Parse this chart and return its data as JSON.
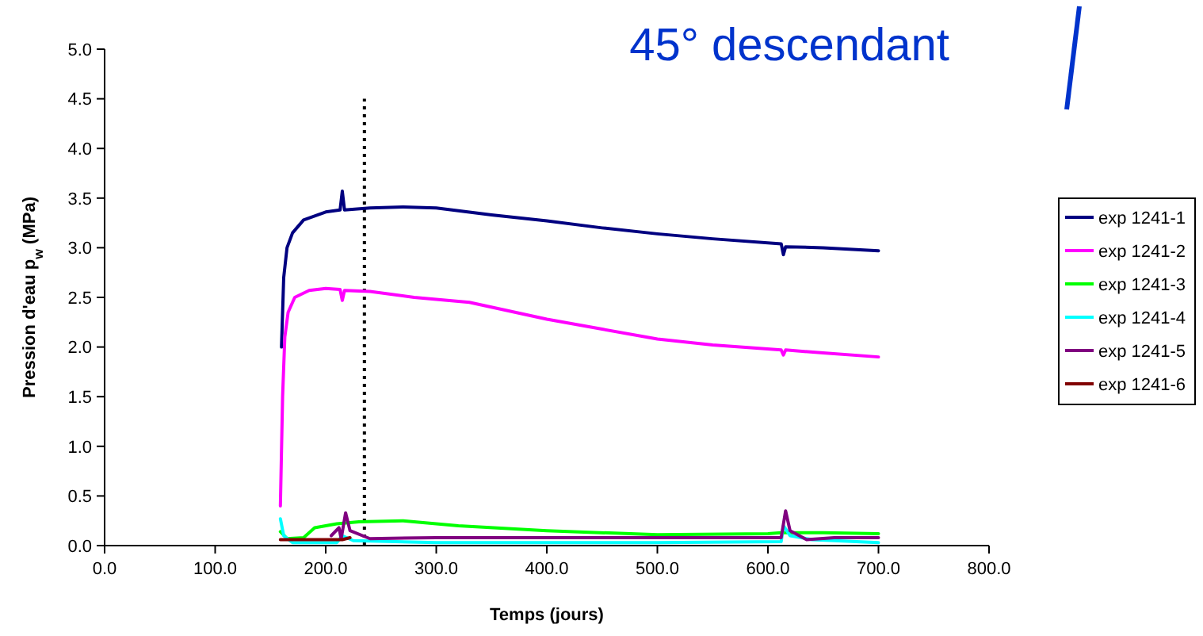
{
  "chart_data": {
    "type": "line",
    "title": "45° descendant",
    "xlabel": "Temps (jours)",
    "ylabel": "Pression d'eau p$_{w}$   (MPa)",
    "xlim": [
      0,
      800
    ],
    "xticks": [
      {
        "value": 0,
        "label": "0.0"
      },
      {
        "value": 100,
        "label": "100.0"
      },
      {
        "value": 200,
        "label": "200.0"
      },
      {
        "value": 300,
        "label": "300.0"
      },
      {
        "value": 400,
        "label": "400.0"
      },
      {
        "value": 500,
        "label": "500.0"
      },
      {
        "value": 600,
        "label": "600.0"
      },
      {
        "value": 700,
        "label": "700.0"
      },
      {
        "value": 800,
        "label": "800.0"
      }
    ],
    "ylim": [
      0,
      5
    ],
    "yticks": [
      {
        "value": 0,
        "label": "0.0"
      },
      {
        "value": 0.5,
        "label": "0.5"
      },
      {
        "value": 1,
        "label": "1.0"
      },
      {
        "value": 1.5,
        "label": "1.5"
      },
      {
        "value": 2,
        "label": "2.0"
      },
      {
        "value": 2.5,
        "label": "2.5"
      },
      {
        "value": 3,
        "label": "3.0"
      },
      {
        "value": 3.5,
        "label": "3.5"
      },
      {
        "value": 4,
        "label": "4.0"
      },
      {
        "value": 4.5,
        "label": "4.5"
      },
      {
        "value": 5,
        "label": "5.0"
      }
    ],
    "grid": false,
    "legend": "right",
    "line_style": "solid",
    "ref_lines": [
      {
        "axis": "x",
        "value": 235,
        "color": "#000000",
        "line_style": "dotted"
      }
    ],
    "series": [
      {
        "name": "exp 1241-1",
        "color": "#000080",
        "x": [
          160,
          162,
          165,
          170,
          180,
          200,
          213,
          215,
          217,
          240,
          270,
          300,
          350,
          400,
          450,
          500,
          550,
          612,
          614,
          616,
          650,
          700
        ],
        "values": [
          2.0,
          2.7,
          3.0,
          3.15,
          3.28,
          3.36,
          3.38,
          3.57,
          3.38,
          3.4,
          3.41,
          3.4,
          3.33,
          3.27,
          3.2,
          3.14,
          3.09,
          3.04,
          2.93,
          3.01,
          3.0,
          2.97
        ]
      },
      {
        "name": "exp 1241-2",
        "color": "#ff00ff",
        "x": [
          159,
          161,
          163,
          166,
          172,
          185,
          200,
          213,
          215,
          217,
          240,
          280,
          330,
          400,
          450,
          500,
          550,
          612,
          614,
          616,
          650,
          700
        ],
        "values": [
          0.4,
          1.5,
          2.1,
          2.35,
          2.5,
          2.57,
          2.59,
          2.58,
          2.47,
          2.57,
          2.56,
          2.5,
          2.45,
          2.28,
          2.18,
          2.08,
          2.02,
          1.97,
          1.92,
          1.97,
          1.94,
          1.9
        ]
      },
      {
        "name": "exp 1241-3",
        "color": "#00ff00",
        "x": [
          159,
          165,
          180,
          190,
          210,
          230,
          270,
          320,
          400,
          500,
          600,
          612,
          650,
          700
        ],
        "values": [
          0.14,
          0.07,
          0.08,
          0.18,
          0.22,
          0.24,
          0.25,
          0.2,
          0.15,
          0.11,
          0.12,
          0.13,
          0.13,
          0.12
        ]
      },
      {
        "name": "exp 1241-4",
        "color": "#00ffff",
        "x": [
          159,
          162,
          170,
          210,
          215,
          225,
          300,
          500,
          612,
          614,
          620,
          640,
          700
        ],
        "values": [
          0.27,
          0.1,
          0.03,
          0.03,
          0.1,
          0.05,
          0.03,
          0.03,
          0.04,
          0.2,
          0.1,
          0.06,
          0.03
        ]
      },
      {
        "name": "exp 1241-5",
        "color": "#800080",
        "x": [
          205,
          212,
          214,
          218,
          222,
          240,
          300,
          500,
          612,
          616,
          620,
          635,
          660,
          700
        ],
        "values": [
          0.1,
          0.18,
          0.07,
          0.33,
          0.15,
          0.07,
          0.08,
          0.08,
          0.08,
          0.35,
          0.15,
          0.06,
          0.08,
          0.08
        ]
      },
      {
        "name": "exp 1241-6",
        "color": "#800000",
        "x": [
          159,
          180,
          200,
          215,
          222
        ],
        "values": [
          0.06,
          0.06,
          0.06,
          0.06,
          0.08
        ]
      }
    ]
  }
}
